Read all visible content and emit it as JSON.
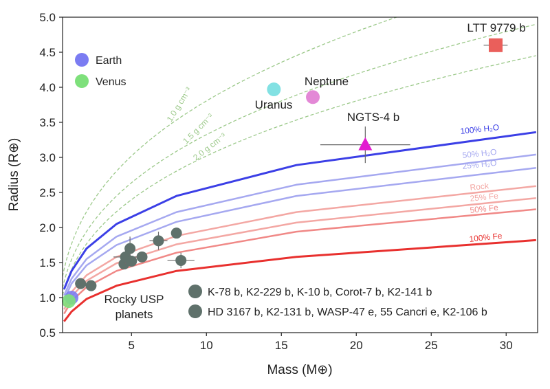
{
  "chart_data": {
    "type": "scatter",
    "xlabel": "Mass (M⊕)",
    "ylabel": "Radius (R⊕)",
    "xlim": [
      0.4,
      32.1
    ],
    "ylim": [
      0.5,
      5.0
    ],
    "x_ticks": [
      "5",
      "10",
      "15",
      "20",
      "25",
      "30"
    ],
    "y_ticks": [
      "0.5",
      "1.0",
      "1.5",
      "2.0",
      "2.5",
      "3.0",
      "3.5",
      "4.0",
      "4.5",
      "5.0"
    ],
    "density_curves": [
      {
        "name": "1.0 g cm⁻³",
        "density": 1.0,
        "color": "#9cc98a"
      },
      {
        "name": "1.5 g cm⁻³",
        "density": 1.5,
        "color": "#9cc98a"
      },
      {
        "name": "2.0 g cm⁻³",
        "density": 2.0,
        "color": "#9cc98a"
      }
    ],
    "composition_curves": [
      {
        "name": "100% H₂O",
        "color": "#3b3fe6",
        "width": 3,
        "x": [
          0.5,
          1,
          2,
          4,
          8,
          16,
          32
        ],
        "y": [
          1.12,
          1.38,
          1.7,
          2.05,
          2.45,
          2.89,
          3.36
        ]
      },
      {
        "name": "50% H₂O",
        "color": "#a5a8f0",
        "width": 2.5,
        "x": [
          0.5,
          1,
          2,
          4,
          8,
          16,
          32
        ],
        "y": [
          1.03,
          1.27,
          1.55,
          1.87,
          2.22,
          2.61,
          3.04
        ]
      },
      {
        "name": "25% H₂O",
        "color": "#a5a8f0",
        "width": 2.5,
        "x": [
          0.5,
          1,
          2,
          4,
          8,
          16,
          32
        ],
        "y": [
          0.97,
          1.2,
          1.46,
          1.75,
          2.08,
          2.45,
          2.85
        ]
      },
      {
        "name": "Rock",
        "color": "#f3a7a3",
        "width": 2.5,
        "x": [
          0.5,
          1,
          2,
          4,
          8,
          16,
          32
        ],
        "y": [
          0.88,
          1.08,
          1.32,
          1.58,
          1.88,
          2.22,
          2.59
        ]
      },
      {
        "name": "25% Fe",
        "color": "#f3a7a3",
        "width": 2.5,
        "x": [
          0.5,
          1,
          2,
          4,
          8,
          16,
          32
        ],
        "y": [
          0.83,
          1.02,
          1.24,
          1.49,
          1.76,
          2.07,
          2.42
        ]
      },
      {
        "name": "50% Fe",
        "color": "#f08886",
        "width": 2.5,
        "x": [
          0.5,
          1,
          2,
          4,
          8,
          16,
          32
        ],
        "y": [
          0.77,
          0.95,
          1.15,
          1.38,
          1.64,
          1.94,
          2.26
        ]
      },
      {
        "name": "100% Fe",
        "color": "#e8302e",
        "width": 3,
        "x": [
          0.5,
          1,
          2,
          4,
          8,
          16,
          32
        ],
        "y": [
          0.66,
          0.8,
          0.98,
          1.17,
          1.38,
          1.58,
          1.82
        ]
      }
    ],
    "planets": [
      {
        "name": "Earth",
        "x": 1.0,
        "y": 1.0,
        "color": "#7b7cf2",
        "marker": "circle",
        "show_label": false
      },
      {
        "name": "Venus",
        "x": 0.815,
        "y": 0.95,
        "color": "#7ee07b",
        "marker": "circle",
        "show_label": false
      },
      {
        "name": "Uranus",
        "x": 14.5,
        "y": 3.97,
        "color": "#74dee0",
        "marker": "circle",
        "show_label": true
      },
      {
        "name": "Neptune",
        "x": 17.1,
        "y": 3.86,
        "color": "#e07bd2",
        "marker": "circle",
        "show_label": true
      },
      {
        "name": "NGTS-4 b",
        "x": 20.6,
        "y": 3.18,
        "color": "#e21bd0",
        "marker": "triangle",
        "show_label": true,
        "xerr": [
          3.0,
          3.0
        ],
        "yerr": [
          0.26,
          0.26
        ]
      },
      {
        "name": "LTT 9779 b",
        "x": 29.3,
        "y": 4.6,
        "color": "#ea5f5b",
        "marker": "square",
        "show_label": true,
        "xerr": [
          0.8,
          0.8
        ],
        "yerr": [
          0.0,
          0.0
        ]
      }
    ],
    "usp_planets": [
      {
        "x": 1.6,
        "y": 1.2
      },
      {
        "x": 2.3,
        "y": 1.17
      },
      {
        "x": 4.5,
        "y": 1.48
      },
      {
        "x": 4.6,
        "y": 1.58,
        "xerr": 0.8,
        "yerr": 0.1
      },
      {
        "x": 4.9,
        "y": 1.7,
        "yerr": 0.17
      },
      {
        "x": 5.0,
        "y": 1.52
      },
      {
        "x": 5.7,
        "y": 1.58
      },
      {
        "x": 6.8,
        "y": 1.81,
        "xerr": 0.6,
        "yerr": 0.13
      },
      {
        "x": 8.0,
        "y": 1.92
      },
      {
        "x": 8.3,
        "y": 1.53,
        "xerr": 0.9,
        "yerr": 0.11
      }
    ],
    "usp_color": "#5f716b",
    "legend": [
      {
        "label": "Earth",
        "color": "#7b7cf2"
      },
      {
        "label": "Venus",
        "color": "#7ee07b"
      }
    ],
    "usp_legend": [
      "K-78 b, K2-229 b, K-10 b, Corot-7 b, K2-141 b",
      "HD 3167 b, K2-131 b, WASP-47 e, 55 Cancri e, K2-106 b"
    ],
    "usp_label": [
      "Rocky USP",
      "planets"
    ]
  }
}
